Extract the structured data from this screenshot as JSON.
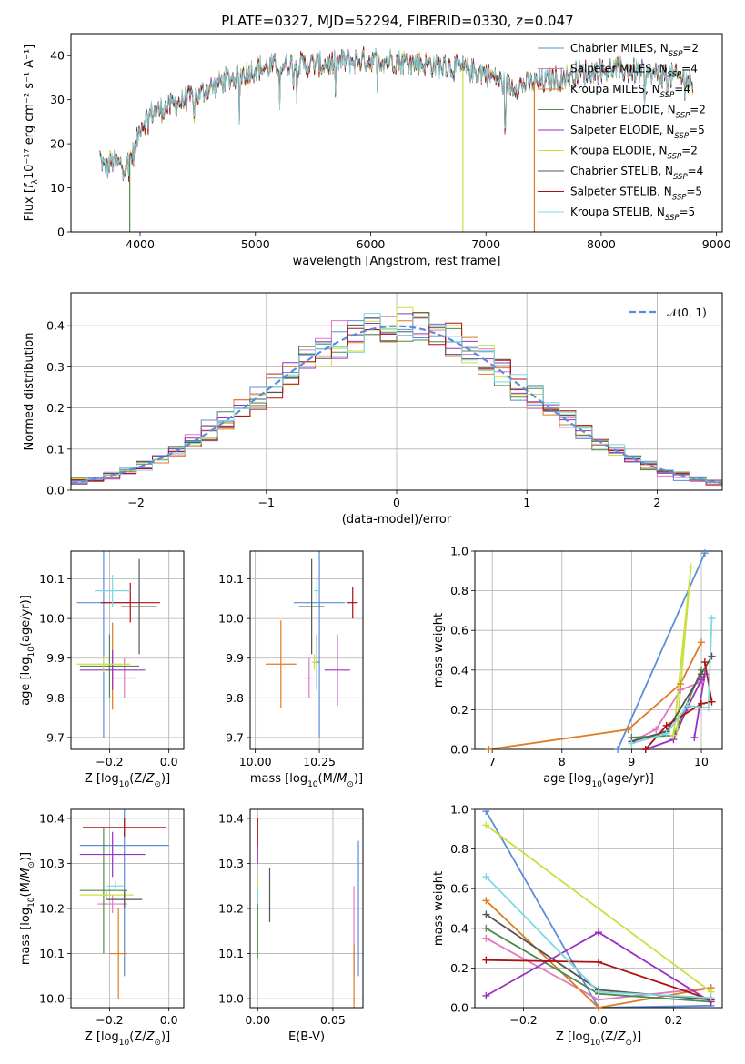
{
  "figure": {
    "title": "PLATE=0327, MJD=52294, FIBERID=0330, z=0.047"
  },
  "colors": {
    "Chabrier MILES": "#5b8dd9",
    "Salpeter MILES": "#e377c2",
    "Kroupa MILES": "#e07a22",
    "Chabrier ELODIE": "#4f8a4f",
    "Salpeter ELODIE": "#9b30c0",
    "Kroupa ELODIE": "#c8e040",
    "Chabrier STELIB": "#555555",
    "Salpeter STELIB": "#b01010",
    "Kroupa STELIB": "#7fd8e0"
  },
  "chart_data": [
    {
      "id": "spectrum",
      "type": "line",
      "title": "PLATE=0327, MJD=52294, FIBERID=0330, z=0.047",
      "xlabel": "wavelength [Angstrom, rest frame]",
      "ylabel": "Flux [fλ10⁻¹⁷ erg cm⁻² s⁻¹ A⁻¹]",
      "xlim": [
        3400,
        9050
      ],
      "ylim": [
        0,
        45
      ],
      "xticks": [
        "4000",
        "5000",
        "6000",
        "7000",
        "8000",
        "9000"
      ],
      "yticks": [
        "0",
        "10",
        "20",
        "30",
        "40"
      ],
      "grid": false,
      "legend_position": "top-right",
      "legend": [
        {
          "label": "Chabrier MILES, N",
          "sub": "SSP",
          "val": "=2",
          "color": "#5b8dd9"
        },
        {
          "label": "Salpeter MILES, N",
          "sub": "SSP",
          "val": "=4",
          "color": "#e377c2"
        },
        {
          "label": "Kroupa MILES, N",
          "sub": "SSP",
          "val": "=4",
          "color": "#e07a22"
        },
        {
          "label": "Chabrier ELODIE, N",
          "sub": "SSP",
          "val": "=2",
          "color": "#4f8a4f"
        },
        {
          "label": "Salpeter ELODIE, N",
          "sub": "SSP",
          "val": "=5",
          "color": "#9b30c0"
        },
        {
          "label": "Kroupa ELODIE, N",
          "sub": "SSP",
          "val": "=2",
          "color": "#c8e040"
        },
        {
          "label": "Chabrier STELIB, N",
          "sub": "SSP",
          "val": "=4",
          "color": "#555555"
        },
        {
          "label": "Salpeter STELIB, N",
          "sub": "SSP",
          "val": "=5",
          "color": "#b01010"
        },
        {
          "label": "Kroupa STELIB, N",
          "sub": "SSP",
          "val": "=5",
          "color": "#7fd8e0"
        }
      ],
      "continuum": {
        "x": [
          3650,
          3700,
          3750,
          3850,
          3950,
          4000,
          4100,
          4300,
          4500,
          4700,
          5000,
          5300,
          5600,
          5900,
          6200,
          6500,
          6800,
          7000,
          7200,
          7500,
          7800,
          8100,
          8400,
          8700,
          8800
        ],
        "y": [
          17,
          14,
          16,
          15,
          18,
          24,
          27,
          29,
          31,
          34,
          37,
          38,
          38,
          39,
          39,
          38,
          37,
          36,
          33,
          34,
          36,
          37,
          36,
          35,
          34
        ]
      },
      "drops": [
        {
          "series": "Kroupa ELODIE",
          "x": 6800,
          "to": 0
        },
        {
          "series": "Kroupa MILES",
          "x": 7420,
          "to": 0
        },
        {
          "series": "Chabrier ELODIE",
          "x": 3910,
          "to": 0
        }
      ]
    },
    {
      "id": "residuals",
      "type": "step",
      "xlabel": "(data-model)/error",
      "ylabel": "Normed distribution",
      "xlim": [
        -2.5,
        2.5
      ],
      "ylim": [
        0,
        0.48
      ],
      "xticks": [
        "−2",
        "−1",
        "0",
        "1",
        "2"
      ],
      "yticks": [
        "0.0",
        "0.1",
        "0.2",
        "0.3",
        "0.4"
      ],
      "grid": true,
      "reference": {
        "label": "𝒩(0, 1)",
        "mu": 0,
        "sigma": 1,
        "color": "#5b8dd9",
        "dashed": true
      },
      "legend_position": "top-right"
    },
    {
      "id": "age-vs-z",
      "type": "scatter",
      "xlabel": "Z [log10(Z/Z☉)]",
      "ylabel": "age [log10(age/yr)]",
      "xlim": [
        -0.33,
        0.05
      ],
      "ylim": [
        9.67,
        10.17
      ],
      "xticks": [
        "−0.2",
        "0.0"
      ],
      "yticks": [
        "9.7",
        "9.8",
        "9.9",
        "10.0",
        "10.1"
      ],
      "grid": true,
      "points": [
        {
          "series": "Chabrier MILES",
          "x": -0.22,
          "y": 10.04,
          "xerr": 0.09,
          "yerr": 0.34
        },
        {
          "series": "Salpeter MILES",
          "x": -0.15,
          "y": 9.85,
          "xerr": 0.04,
          "yerr": 0.05
        },
        {
          "series": "Kroupa MILES",
          "x": -0.19,
          "y": 9.88,
          "xerr": 0.03,
          "yerr": 0.11
        },
        {
          "series": "Chabrier ELODIE",
          "x": -0.2,
          "y": 9.88,
          "xerr": 0.1,
          "yerr": 0.08
        },
        {
          "series": "Salpeter ELODIE",
          "x": -0.19,
          "y": 9.87,
          "xerr": 0.11,
          "yerr": 0.05
        },
        {
          "series": "Kroupa ELODIE",
          "x": -0.22,
          "y": 9.885,
          "xerr": 0.09,
          "yerr": 0.02
        },
        {
          "series": "Chabrier STELIB",
          "x": -0.1,
          "y": 10.03,
          "xerr": 0.06,
          "yerr": 0.12
        },
        {
          "series": "Salpeter STELIB",
          "x": -0.13,
          "y": 10.04,
          "xerr": 0.1,
          "yerr": 0.05
        },
        {
          "series": "Kroupa STELIB",
          "x": -0.19,
          "y": 10.07,
          "xerr": 0.06,
          "yerr": 0.04
        }
      ]
    },
    {
      "id": "age-vs-mass",
      "type": "scatter",
      "xlabel": "mass [log10(M/M☉)]",
      "ylabel": "",
      "xlim": [
        9.98,
        10.42
      ],
      "ylim": [
        9.67,
        10.17
      ],
      "xticks": [
        "10.00",
        "10.25"
      ],
      "yticks": [
        "9.7",
        "9.8",
        "9.9",
        "10.0",
        "10.1"
      ],
      "grid": true,
      "points": [
        {
          "series": "Chabrier MILES",
          "x": 10.25,
          "y": 10.04,
          "xerr": 0.1,
          "yerr": 0.34
        },
        {
          "series": "Salpeter MILES",
          "x": 10.21,
          "y": 9.85,
          "xerr": 0.02,
          "yerr": 0.05
        },
        {
          "series": "Kroupa MILES",
          "x": 10.1,
          "y": 9.885,
          "xerr": 0.06,
          "yerr": 0.11
        },
        {
          "series": "Chabrier ELODIE",
          "x": 10.24,
          "y": 9.89,
          "xerr": 0.01,
          "yerr": 0.07
        },
        {
          "series": "Salpeter ELODIE",
          "x": 10.32,
          "y": 9.87,
          "xerr": 0.05,
          "yerr": 0.09
        },
        {
          "series": "Kroupa ELODIE",
          "x": 10.23,
          "y": 9.89,
          "xerr": 0.01,
          "yerr": 0.02
        },
        {
          "series": "Chabrier STELIB",
          "x": 10.22,
          "y": 10.03,
          "xerr": 0.05,
          "yerr": 0.12
        },
        {
          "series": "Salpeter STELIB",
          "x": 10.38,
          "y": 10.04,
          "xerr": 0.02,
          "yerr": 0.04
        },
        {
          "series": "Kroupa STELIB",
          "x": 10.24,
          "y": 10.07,
          "xerr": 0.01,
          "yerr": 0.03
        }
      ]
    },
    {
      "id": "weights-vs-age",
      "type": "line",
      "xlabel": "age [log10(age/yr)]",
      "ylabel": "mass weight",
      "xlim": [
        6.75,
        10.3
      ],
      "ylim": [
        0,
        1
      ],
      "xticks": [
        "7",
        "8",
        "9",
        "10"
      ],
      "yticks": [
        "0.0",
        "0.2",
        "0.4",
        "0.6",
        "0.8",
        "1.0"
      ],
      "grid": true,
      "series": [
        {
          "name": "Chabrier MILES",
          "x": [
            8.8,
            10.05
          ],
          "y": [
            0.0,
            0.99
          ]
        },
        {
          "name": "Salpeter MILES",
          "x": [
            9.0,
            9.35,
            9.7,
            10.0
          ],
          "y": [
            0.04,
            0.1,
            0.3,
            0.34
          ]
        },
        {
          "name": "Kroupa MILES",
          "x": [
            6.95,
            8.95,
            9.7,
            10.0
          ],
          "y": [
            0.0,
            0.1,
            0.33,
            0.54
          ]
        },
        {
          "name": "Chabrier ELODIE",
          "x": [
            9.0,
            9.6,
            10.0
          ],
          "y": [
            0.06,
            0.07,
            0.4
          ]
        },
        {
          "name": "Salpeter ELODIE",
          "x": [
            9.2,
            9.6,
            9.8,
            10.0,
            10.05,
            9.9
          ],
          "y": [
            0.0,
            0.05,
            0.21,
            0.35,
            0.38,
            0.06
          ]
        },
        {
          "name": "Kroupa ELODIE",
          "x": [
            9.6,
            9.85,
            9.65
          ],
          "y": [
            0.07,
            0.92,
            0.1
          ]
        },
        {
          "name": "Chabrier STELIB",
          "x": [
            9.0,
            9.5,
            10.0,
            10.15
          ],
          "y": [
            0.04,
            0.09,
            0.38,
            0.47
          ]
        },
        {
          "name": "Salpeter STELIB",
          "x": [
            9.2,
            9.5,
            10.0,
            10.15,
            10.05
          ],
          "y": [
            0.0,
            0.12,
            0.23,
            0.24,
            0.44
          ]
        },
        {
          "name": "Kroupa STELIB",
          "x": [
            9.0,
            9.5,
            9.8,
            10.1,
            10.15
          ],
          "y": [
            0.03,
            0.08,
            0.22,
            0.21,
            0.66
          ]
        }
      ]
    },
    {
      "id": "mass-vs-z",
      "type": "scatter",
      "xlabel": "Z [log10(Z/Z☉)]",
      "ylabel": "mass [log10(M/M☉)]",
      "xlim": [
        -0.33,
        0.05
      ],
      "ylim": [
        9.98,
        10.42
      ],
      "xticks": [
        "−0.2",
        "0.0"
      ],
      "yticks": [
        "10.0",
        "10.1",
        "10.2",
        "10.3",
        "10.4"
      ],
      "grid": true,
      "points": [
        {
          "series": "Chabrier MILES",
          "x": -0.15,
          "y": 10.34,
          "xerr": 0.15,
          "yerr": 0.29
        },
        {
          "series": "Salpeter MILES",
          "x": -0.19,
          "y": 10.21,
          "xerr": 0.05,
          "yerr": 0.02
        },
        {
          "series": "Kroupa MILES",
          "x": -0.17,
          "y": 10.1,
          "xerr": 0.03,
          "yerr": 0.1
        },
        {
          "series": "Chabrier ELODIE",
          "x": -0.22,
          "y": 10.24,
          "xerr": 0.08,
          "yerr": 0.14
        },
        {
          "series": "Salpeter ELODIE",
          "x": -0.19,
          "y": 10.32,
          "xerr": 0.11,
          "yerr": 0.05
        },
        {
          "series": "Kroupa ELODIE",
          "x": -0.21,
          "y": 10.23,
          "xerr": 0.09,
          "yerr": 0.01
        },
        {
          "series": "Chabrier STELIB",
          "x": -0.15,
          "y": 10.22,
          "xerr": 0.06,
          "yerr": 0.02
        },
        {
          "series": "Salpeter STELIB",
          "x": -0.15,
          "y": 10.38,
          "xerr": 0.14,
          "yerr": 0.02
        },
        {
          "series": "Kroupa STELIB",
          "x": -0.18,
          "y": 10.25,
          "xerr": 0.03,
          "yerr": 0.01
        }
      ]
    },
    {
      "id": "mass-vs-ebv",
      "type": "scatter",
      "xlabel": "E(B-V)",
      "ylabel": "",
      "xlim": [
        -0.005,
        0.07
      ],
      "ylim": [
        9.98,
        10.42
      ],
      "xticks": [
        "0.00",
        "0.05"
      ],
      "yticks": [
        "10.0",
        "10.1",
        "10.2",
        "10.3",
        "10.4"
      ],
      "grid": true,
      "points": [
        {
          "series": "Chabrier MILES",
          "x": 0.067,
          "y": 10.2,
          "yerr": 0.15
        },
        {
          "series": "Salpeter MILES",
          "x": 0.064,
          "y": 10.15,
          "yerr": 0.1
        },
        {
          "series": "Kroupa MILES",
          "x": 0.064,
          "y": 10.04,
          "yerr": 0.08
        },
        {
          "series": "Chabrier ELODIE",
          "x": 0.0,
          "y": 10.16,
          "yerr": 0.07
        },
        {
          "series": "Salpeter ELODIE",
          "x": 0.0,
          "y": 10.32,
          "yerr": 0.02
        },
        {
          "series": "Kroupa ELODIE",
          "x": 0.0,
          "y": 10.25,
          "yerr": 0.02
        },
        {
          "series": "Chabrier STELIB",
          "x": 0.008,
          "y": 10.23,
          "yerr": 0.06
        },
        {
          "series": "Salpeter STELIB",
          "x": 0.0,
          "y": 10.37,
          "yerr": 0.03
        },
        {
          "series": "Kroupa STELIB",
          "x": 0.0,
          "y": 10.23,
          "yerr": 0.02
        }
      ]
    },
    {
      "id": "weights-vs-z",
      "type": "line",
      "xlabel": "Z [log10(Z/Z☉)]",
      "ylabel": "mass weight",
      "xlim": [
        -0.33,
        0.33
      ],
      "ylim": [
        0,
        1
      ],
      "xticks": [
        "−0.2",
        "0.0",
        "0.2"
      ],
      "yticks": [
        "0.0",
        "0.2",
        "0.4",
        "0.6",
        "0.8",
        "1.0"
      ],
      "grid": true,
      "series": [
        {
          "name": "Chabrier MILES",
          "x": [
            -0.3,
            0.0,
            0.3
          ],
          "y": [
            0.99,
            0.0,
            0.01
          ]
        },
        {
          "name": "Salpeter MILES",
          "x": [
            -0.3,
            0.0,
            0.3
          ],
          "y": [
            0.35,
            0.04,
            0.1
          ]
        },
        {
          "name": "Kroupa MILES",
          "x": [
            -0.3,
            0.0,
            0.3
          ],
          "y": [
            0.54,
            0.0,
            0.1
          ]
        },
        {
          "name": "Chabrier ELODIE",
          "x": [
            -0.3,
            0.0,
            0.3
          ],
          "y": [
            0.4,
            0.07,
            0.03
          ]
        },
        {
          "name": "Salpeter ELODIE",
          "x": [
            -0.3,
            0.0,
            0.3
          ],
          "y": [
            0.06,
            0.38,
            0.03
          ]
        },
        {
          "name": "Kroupa ELODIE",
          "x": [
            -0.3,
            0.3
          ],
          "y": [
            0.92,
            0.08
          ]
        },
        {
          "name": "Chabrier STELIB",
          "x": [
            -0.3,
            0.0,
            0.3
          ],
          "y": [
            0.47,
            0.09,
            0.04
          ]
        },
        {
          "name": "Salpeter STELIB",
          "x": [
            -0.3,
            0.0,
            0.3
          ],
          "y": [
            0.24,
            0.23,
            0.04
          ]
        },
        {
          "name": "Kroupa STELIB",
          "x": [
            -0.3,
            0.0,
            0.3
          ],
          "y": [
            0.66,
            0.08,
            0.05
          ]
        }
      ]
    }
  ]
}
